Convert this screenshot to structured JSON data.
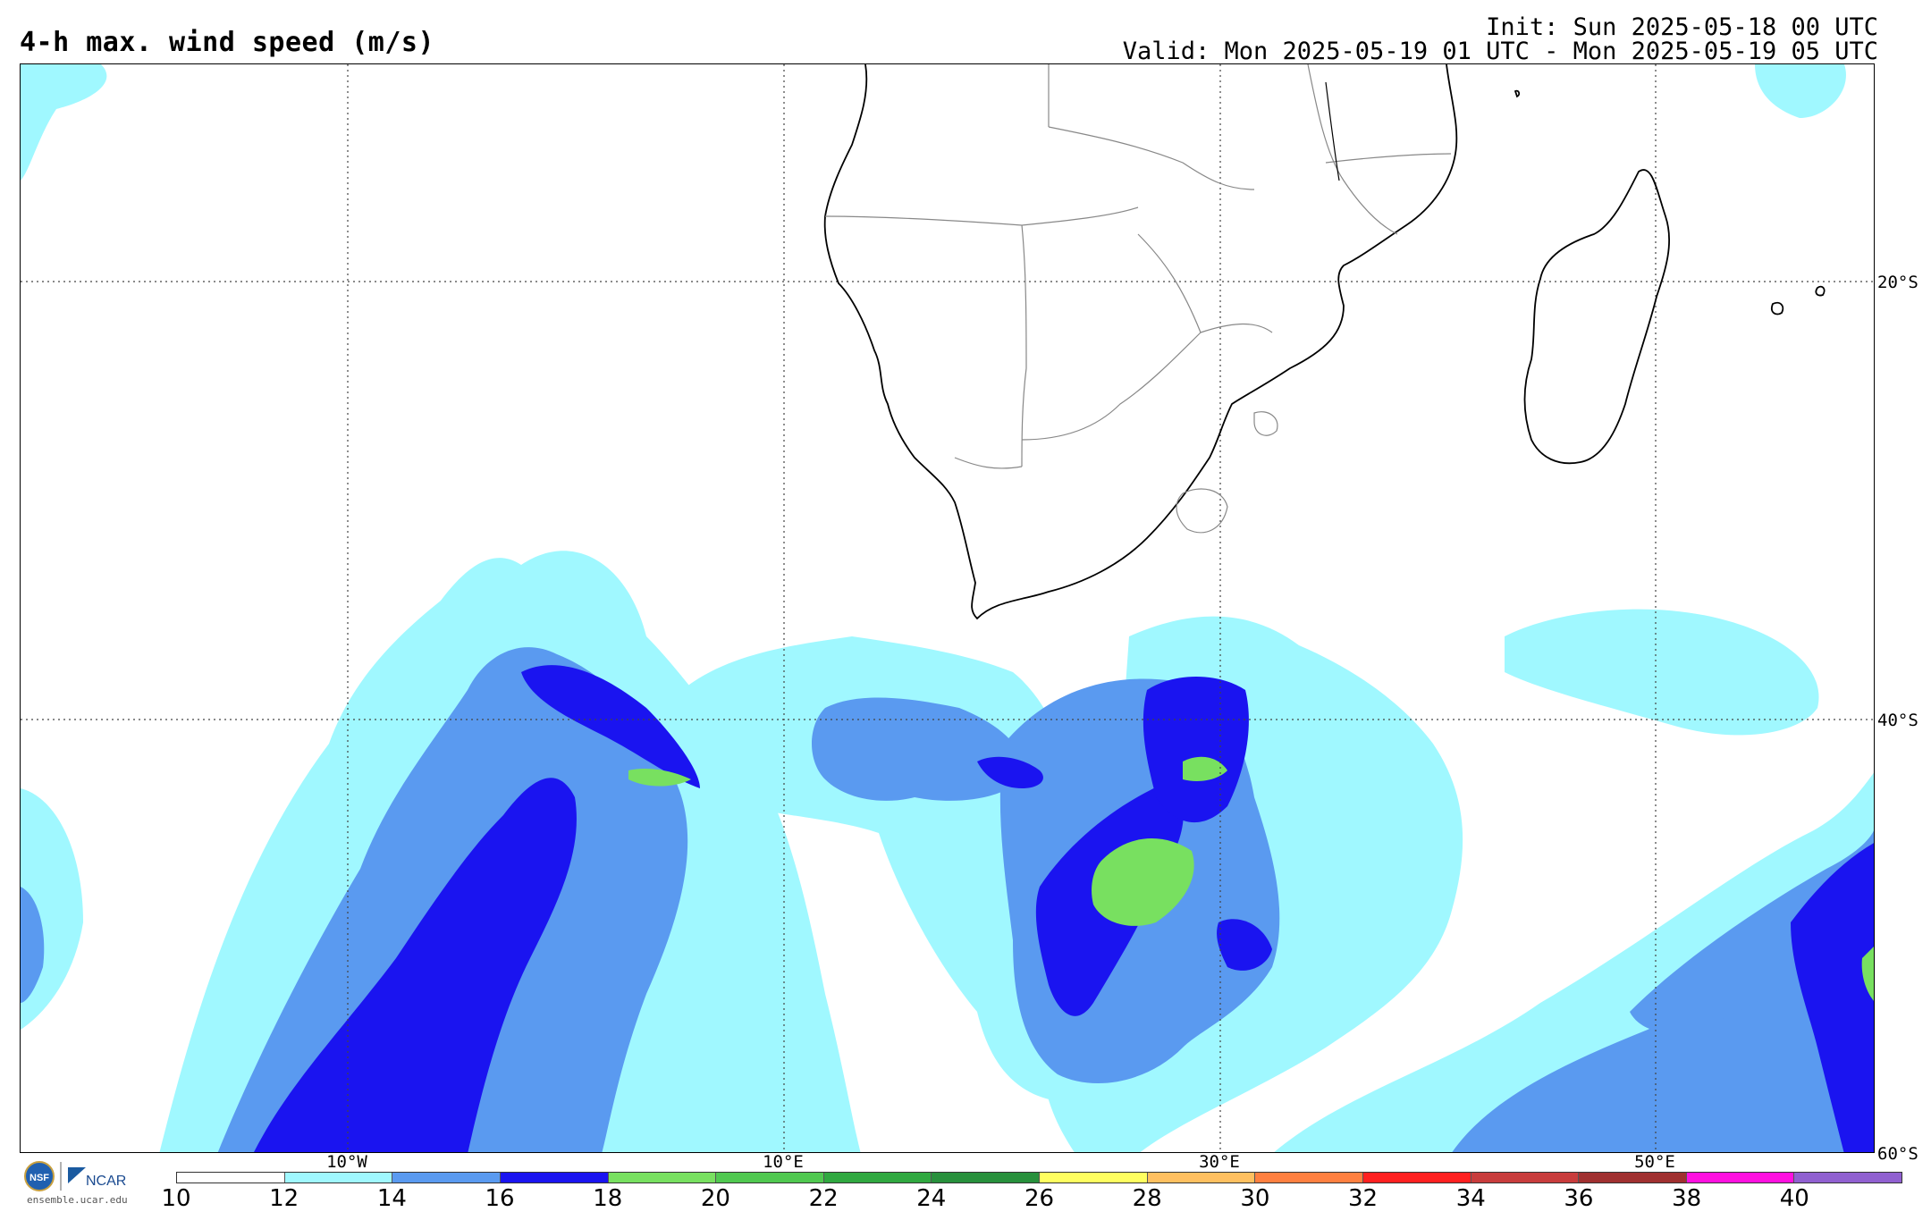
{
  "title": "4-h max. wind speed (m/s)",
  "init": "Init: Sun 2025-05-18 00 UTC",
  "valid": "Valid: Mon 2025-05-19 01 UTC - Mon 2025-05-19 05 UTC",
  "lat_labels": [
    "20°S",
    "40°S",
    "60°S"
  ],
  "lon_labels": [
    "10°W",
    "10°E",
    "30°E",
    "50°E"
  ],
  "logo_caption": "ensemble.ucar.edu",
  "logo_text": "NCAR",
  "colorbar": {
    "ticks": [
      "10",
      "12",
      "14",
      "16",
      "18",
      "20",
      "22",
      "24",
      "26",
      "28",
      "30",
      "32",
      "34",
      "36",
      "38",
      "40"
    ],
    "colors": [
      "#ffffff",
      "#a0f8ff",
      "#5a9af0",
      "#1a14f0",
      "#78e060",
      "#50c850",
      "#30a840",
      "#28903c",
      "#ffff60",
      "#ffc060",
      "#ff8040",
      "#ff2020",
      "#c83c3c",
      "#a03030",
      "#ff10e0",
      "#9060d0"
    ]
  },
  "map_colors": {
    "c12": "#a0f8ff",
    "c14": "#5a9af0",
    "c16": "#1a14f0",
    "c18": "#78e060",
    "c20": "#50c850"
  }
}
